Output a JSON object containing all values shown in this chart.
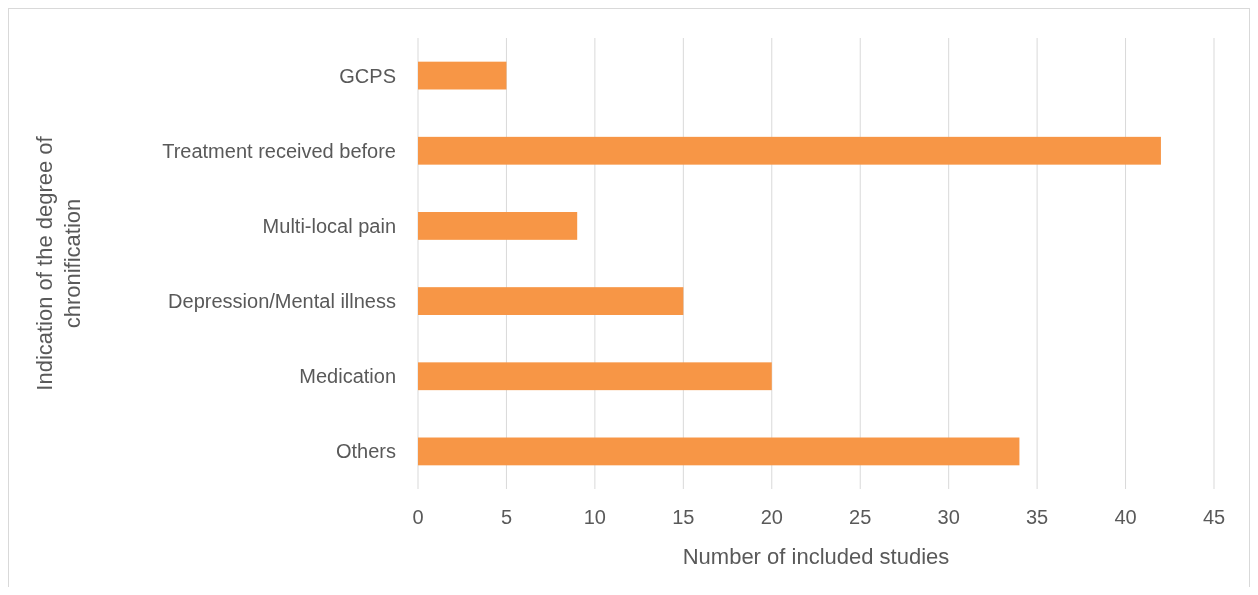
{
  "chart_data": {
    "type": "bar",
    "orientation": "horizontal",
    "xlabel": "Number of included studies",
    "ylabel": "Indication of the degree of chronification",
    "categories": [
      "GCPS",
      "Treatment received before",
      "Multi-local pain",
      "Depression/Mental illness",
      "Medication",
      "Others"
    ],
    "values": [
      5,
      42,
      9,
      15,
      20,
      34
    ],
    "color": "#f79646",
    "xlim": [
      0,
      45
    ],
    "xticks": [
      0,
      5,
      10,
      15,
      20,
      25,
      30,
      35,
      40,
      45
    ],
    "grid": "x"
  }
}
